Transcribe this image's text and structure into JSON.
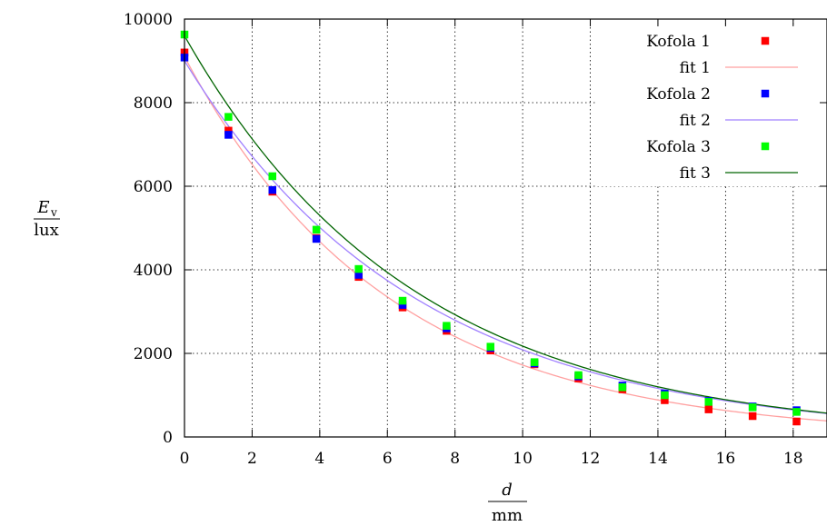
{
  "chart_data": {
    "type": "scatter",
    "x_label": {
      "var": "d",
      "unit": "mm"
    },
    "y_label": {
      "var": "E",
      "sub": "v",
      "unit": "lux"
    },
    "xlim": [
      0,
      19
    ],
    "ylim": [
      0,
      10000
    ],
    "x_ticks": [
      0,
      2,
      4,
      6,
      8,
      10,
      12,
      14,
      16,
      18
    ],
    "y_ticks": [
      0,
      2000,
      4000,
      6000,
      8000,
      10000
    ],
    "grid": true,
    "legend_position": "top-right",
    "x": [
      0,
      1.3,
      2.6,
      3.9,
      5.15,
      6.45,
      7.75,
      9.05,
      10.35,
      11.65,
      12.95,
      14.2,
      15.5,
      16.8,
      18.1
    ],
    "series": [
      {
        "name": "Kofola 1",
        "kind": "points",
        "color": "#ff0000",
        "values": [
          9200,
          7330,
          5870,
          4760,
          3830,
          3100,
          2540,
          2070,
          1740,
          1400,
          1140,
          880,
          660,
          500,
          370
        ]
      },
      {
        "name": "fit 1",
        "kind": "line",
        "color": "#ffa0a0",
        "model": {
          "a": 9100,
          "k": 0.1665
        }
      },
      {
        "name": "Kofola 2",
        "kind": "points",
        "color": "#0000ff",
        "values": [
          9080,
          7230,
          5910,
          4740,
          3880,
          3160,
          2600,
          2130,
          1760,
          1450,
          1230,
          1040,
          860,
          730,
          640
        ]
      },
      {
        "name": "fit 2",
        "kind": "line",
        "color": "#a080ff",
        "model": {
          "a": 9000,
          "k": 0.1462
        }
      },
      {
        "name": "Kofola 3",
        "kind": "points",
        "color": "#00ff00",
        "values": [
          9630,
          7660,
          6240,
          4960,
          4020,
          3260,
          2660,
          2160,
          1790,
          1480,
          1190,
          1000,
          840,
          710,
          600
        ]
      },
      {
        "name": "fit 3",
        "kind": "line",
        "color": "#006400",
        "model": {
          "a": 9600,
          "k": 0.1485
        }
      }
    ]
  }
}
